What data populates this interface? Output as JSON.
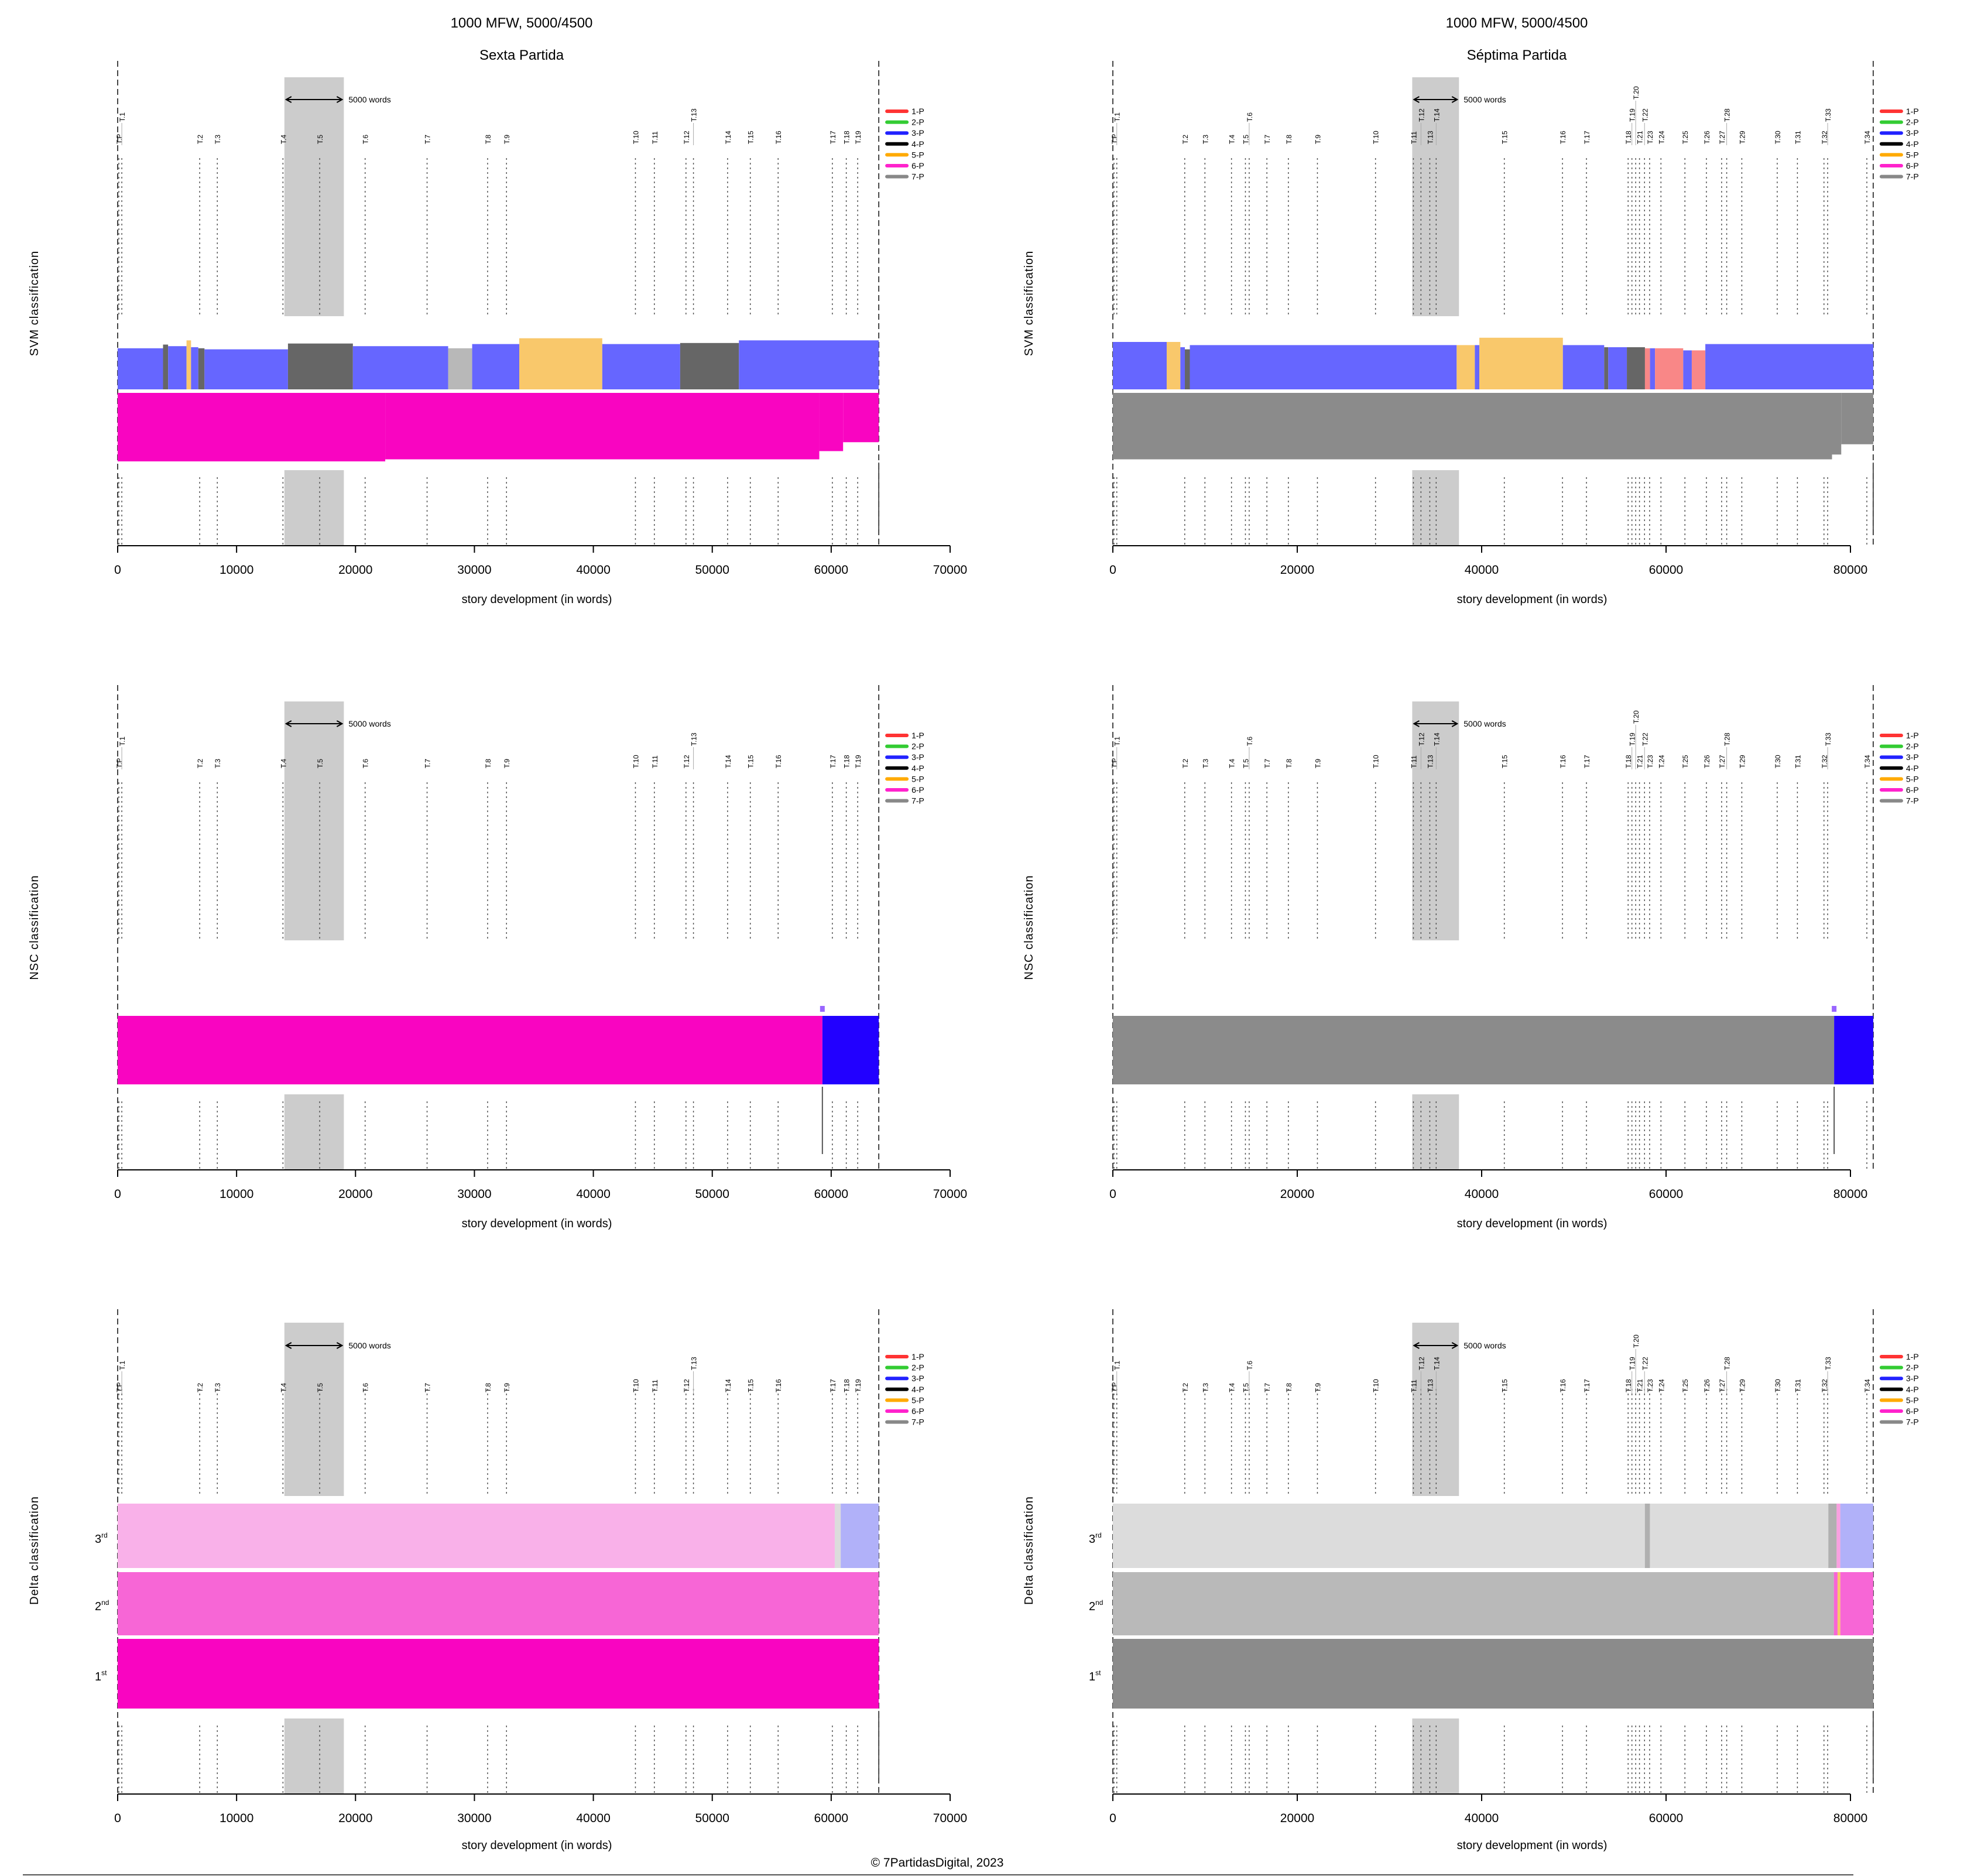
{
  "colors": {
    "blue": "#6666ff",
    "dark": "#666666",
    "orange": "#f9c86b",
    "lightgray": "#b8b8b8",
    "magenta": "#f905c1",
    "gray": "#8b8b8b",
    "salmon": "#f98787",
    "nscblue": "#2200ff",
    "pinklight": "#f9b1e9",
    "pinkmid": "#f766d6",
    "lavender": "#b1b1f9",
    "gray3": "#dcdcdc",
    "gray2": "#b9b9b9",
    "graymark": "#b0b0b0",
    "pinkthin": "#f9a0e0",
    "window": "#cccccc"
  },
  "legend": [
    {
      "label": "1-P",
      "color": "#ff3333"
    },
    {
      "label": "2-P",
      "color": "#33cc33"
    },
    {
      "label": "3-P",
      "color": "#2222ff"
    },
    {
      "label": "4-P",
      "color": "#000000"
    },
    {
      "label": "5-P",
      "color": "#ffaa00"
    },
    {
      "label": "6-P",
      "color": "#ff22cc"
    },
    {
      "label": "7-P",
      "color": "#888888"
    }
  ],
  "window_label": "5000 words",
  "footer": "© 7PartidasDigital, 2023",
  "rank_labels": {
    "r3": "3",
    "r3sup": "rd",
    "r2": "2",
    "r2sup": "nd",
    "r1": "1",
    "r1sup": "st"
  },
  "chart_data": [
    {
      "type": "bar",
      "title": "1000 MFW, 5000/4500",
      "subtitle": "Sexta Partida",
      "ylabel": "SVM classification",
      "xlabel": "story development (in words)",
      "xlim": [
        0,
        70000
      ],
      "xticks": [
        0,
        10000,
        20000,
        30000,
        40000,
        50000,
        60000,
        70000
      ],
      "text_end": 64000,
      "window": [
        14020,
        19020
      ],
      "chapters": [
        [
          "T.P",
          0
        ],
        [
          "T.1",
          250
        ],
        [
          "T.2",
          6800
        ],
        [
          "T.3",
          8280
        ],
        [
          "T.4",
          13800
        ],
        [
          "T.5",
          16890
        ],
        [
          "T.6",
          20710
        ],
        [
          "T.7",
          25920
        ],
        [
          "T.8",
          31010
        ],
        [
          "T.9",
          32600
        ],
        [
          "T.10",
          43440
        ],
        [
          "T.11",
          45030
        ],
        [
          "T.12",
          47690
        ],
        [
          "T.13",
          48320
        ],
        [
          "T.14",
          51190
        ],
        [
          "T.15",
          53100
        ],
        [
          "T.16",
          55440
        ],
        [
          "T.17",
          60000
        ],
        [
          "T.18",
          61170
        ],
        [
          "T.19",
          62130
        ]
      ],
      "bands": [
        [
          [
            0,
            3815,
            "blue",
            0.78
          ],
          [
            3815,
            4240,
            "dark",
            0.85
          ],
          [
            4240,
            5790,
            "blue",
            0.82
          ],
          [
            5790,
            6170,
            "orange",
            0.93
          ],
          [
            6170,
            6780,
            "blue",
            0.8
          ],
          [
            6780,
            7300,
            "dark",
            0.78
          ],
          [
            7300,
            14320,
            "blue",
            0.76
          ],
          [
            14320,
            19780,
            "dark",
            0.87
          ],
          [
            19780,
            27790,
            "blue",
            0.82
          ],
          [
            27790,
            29810,
            "lightgray",
            0.78
          ],
          [
            29810,
            33770,
            "blue",
            0.86
          ],
          [
            33770,
            40750,
            "orange",
            0.97
          ],
          [
            40750,
            47300,
            "blue",
            0.86
          ],
          [
            47300,
            52240,
            "dark",
            0.88
          ],
          [
            52240,
            64000,
            "blue",
            0.93
          ]
        ],
        [
          [
            0,
            22500,
            "magenta",
            1.0
          ],
          [
            22500,
            59000,
            "magenta",
            0.97
          ],
          [
            59000,
            61000,
            "magenta",
            0.85
          ],
          [
            61000,
            64000,
            "magenta",
            0.72
          ]
        ]
      ]
    },
    {
      "type": "bar",
      "title": "1000 MFW, 5000/4500",
      "subtitle": "Séptima Partida",
      "ylabel": "SVM classification",
      "xlabel": "story development (in words)",
      "xlim": [
        0,
        80000
      ],
      "xticks": [
        0,
        20000,
        40000,
        60000,
        80000
      ],
      "text_end": 82470,
      "window": [
        32470,
        37540
      ],
      "chapters": [
        [
          "T.P",
          0
        ],
        [
          "T.1",
          300
        ],
        [
          "T.2",
          7670
        ],
        [
          "T.3",
          9860
        ],
        [
          "T.4",
          12740
        ],
        [
          "T.5",
          14250
        ],
        [
          "T.6",
          14660
        ],
        [
          "T.7",
          16580
        ],
        [
          "T.8",
          18910
        ],
        [
          "T.9",
          22060
        ],
        [
          "T.10",
          28360
        ],
        [
          "T.11",
          32470
        ],
        [
          "T.12",
          33290
        ],
        [
          "T.13",
          34250
        ],
        [
          "T.14",
          34940
        ],
        [
          "T.15",
          42330
        ],
        [
          "T.16",
          48640
        ],
        [
          "T.17",
          51240
        ],
        [
          "T.18",
          55760
        ],
        [
          "T.19",
          56170
        ],
        [
          "T.20",
          56580
        ],
        [
          "T.21",
          56990
        ],
        [
          "T.22",
          57540
        ],
        [
          "T.23",
          58090
        ],
        [
          "T.24",
          59320
        ],
        [
          "T.25",
          61920
        ],
        [
          "T.26",
          64250
        ],
        [
          "T.27",
          65900
        ],
        [
          "T.28",
          66450
        ],
        [
          "T.29",
          68090
        ],
        [
          "T.30",
          71930
        ],
        [
          "T.31",
          74120
        ],
        [
          "T.32",
          77000
        ],
        [
          "T.33",
          77400
        ],
        [
          "T.34",
          81650
        ]
      ],
      "bands": [
        [
          [
            0,
            5840,
            "blue",
            0.9
          ],
          [
            5840,
            7320,
            "orange",
            0.9
          ],
          [
            7320,
            7810,
            "blue",
            0.8
          ],
          [
            7810,
            8350,
            "dark",
            0.76
          ],
          [
            8350,
            37290,
            "blue",
            0.84
          ],
          [
            37290,
            39260,
            "orange",
            0.84
          ],
          [
            39260,
            39750,
            "blue",
            0.84
          ],
          [
            39750,
            48810,
            "orange",
            0.98
          ],
          [
            48810,
            53290,
            "blue",
            0.84
          ],
          [
            53290,
            53730,
            "dark",
            0.8
          ],
          [
            53730,
            55750,
            "blue",
            0.8
          ],
          [
            55750,
            57710,
            "dark",
            0.8
          ],
          [
            57710,
            58260,
            "salmon",
            0.78
          ],
          [
            58260,
            58800,
            "blue",
            0.78
          ],
          [
            58800,
            61860,
            "salmon",
            0.78
          ],
          [
            61860,
            62790,
            "blue",
            0.74
          ],
          [
            62790,
            64260,
            "salmon",
            0.74
          ],
          [
            64260,
            82470,
            "blue",
            0.86
          ]
        ],
        [
          [
            0,
            78000,
            "gray",
            0.97
          ],
          [
            78000,
            79000,
            "gray",
            0.9
          ],
          [
            79000,
            82470,
            "gray",
            0.75
          ]
        ]
      ]
    },
    {
      "type": "bar",
      "title": "",
      "subtitle": "",
      "ylabel": "NSC classification",
      "xlabel": "story development (in words)",
      "xlim": [
        0,
        70000
      ],
      "xticks": [
        0,
        10000,
        20000,
        30000,
        40000,
        50000,
        60000,
        70000
      ],
      "text_end": 64000,
      "window": [
        14020,
        19020
      ],
      "chapters": [
        [
          "T.P",
          0
        ],
        [
          "T.1",
          250
        ],
        [
          "T.2",
          6800
        ],
        [
          "T.3",
          8280
        ],
        [
          "T.4",
          13800
        ],
        [
          "T.5",
          16890
        ],
        [
          "T.6",
          20710
        ],
        [
          "T.7",
          25920
        ],
        [
          "T.8",
          31010
        ],
        [
          "T.9",
          32600
        ],
        [
          "T.10",
          43440
        ],
        [
          "T.11",
          45030
        ],
        [
          "T.12",
          47690
        ],
        [
          "T.13",
          48320
        ],
        [
          "T.14",
          51190
        ],
        [
          "T.15",
          53100
        ],
        [
          "T.16",
          55440
        ],
        [
          "T.17",
          60000
        ],
        [
          "T.18",
          61170
        ],
        [
          "T.19",
          62130
        ]
      ],
      "bands": [
        [
          [
            0,
            59260,
            "magenta",
            1.0
          ],
          [
            59260,
            64000,
            "nscblue",
            1.0
          ]
        ]
      ],
      "transition": 59260
    },
    {
      "type": "bar",
      "title": "",
      "subtitle": "",
      "ylabel": "NSC classification",
      "xlabel": "story development (in words)",
      "xlim": [
        0,
        80000
      ],
      "xticks": [
        0,
        20000,
        40000,
        60000,
        80000
      ],
      "text_end": 82470,
      "window": [
        32470,
        37540
      ],
      "chapters": [
        [
          "T.P",
          0
        ],
        [
          "T.1",
          300
        ],
        [
          "T.2",
          7670
        ],
        [
          "T.3",
          9860
        ],
        [
          "T.4",
          12740
        ],
        [
          "T.5",
          14250
        ],
        [
          "T.6",
          14660
        ],
        [
          "T.7",
          16580
        ],
        [
          "T.8",
          18910
        ],
        [
          "T.9",
          22060
        ],
        [
          "T.10",
          28360
        ],
        [
          "T.11",
          32470
        ],
        [
          "T.12",
          33290
        ],
        [
          "T.13",
          34250
        ],
        [
          "T.14",
          34940
        ],
        [
          "T.15",
          42330
        ],
        [
          "T.16",
          48640
        ],
        [
          "T.17",
          51240
        ],
        [
          "T.18",
          55760
        ],
        [
          "T.19",
          56170
        ],
        [
          "T.20",
          56580
        ],
        [
          "T.21",
          56990
        ],
        [
          "T.22",
          57540
        ],
        [
          "T.23",
          58090
        ],
        [
          "T.24",
          59320
        ],
        [
          "T.25",
          61920
        ],
        [
          "T.26",
          64250
        ],
        [
          "T.27",
          65900
        ],
        [
          "T.28",
          66450
        ],
        [
          "T.29",
          68090
        ],
        [
          "T.30",
          71930
        ],
        [
          "T.31",
          74120
        ],
        [
          "T.32",
          77000
        ],
        [
          "T.33",
          77400
        ],
        [
          "T.34",
          81650
        ]
      ],
      "bands": [
        [
          [
            0,
            78230,
            "gray",
            1.0
          ],
          [
            78230,
            82470,
            "nscblue",
            1.0
          ]
        ]
      ],
      "transition": 78230
    },
    {
      "type": "bar",
      "title": "",
      "subtitle": "",
      "ylabel": "Delta classification",
      "xlabel": "story development (in words)",
      "xlim": [
        0,
        70000
      ],
      "xticks": [
        0,
        10000,
        20000,
        30000,
        40000,
        50000,
        60000,
        70000
      ],
      "text_end": 64000,
      "window": [
        14020,
        19020
      ],
      "chapters": [
        [
          "T.P",
          0
        ],
        [
          "T.1",
          250
        ],
        [
          "T.2",
          6800
        ],
        [
          "T.3",
          8280
        ],
        [
          "T.4",
          13800
        ],
        [
          "T.5",
          16890
        ],
        [
          "T.6",
          20710
        ],
        [
          "T.7",
          25920
        ],
        [
          "T.8",
          31010
        ],
        [
          "T.9",
          32600
        ],
        [
          "T.10",
          43440
        ],
        [
          "T.11",
          45030
        ],
        [
          "T.12",
          47690
        ],
        [
          "T.13",
          48320
        ],
        [
          "T.14",
          51190
        ],
        [
          "T.15",
          53100
        ],
        [
          "T.16",
          55440
        ],
        [
          "T.17",
          60000
        ],
        [
          "T.18",
          61170
        ],
        [
          "T.19",
          62130
        ]
      ],
      "bands": [
        [
          [
            0,
            60300,
            "pinklight",
            1
          ],
          [
            60300,
            60800,
            "gray3",
            1
          ],
          [
            60800,
            64000,
            "lavender",
            1
          ]
        ],
        [
          [
            0,
            64000,
            "pinkmid",
            1
          ]
        ],
        [
          [
            0,
            64000,
            "magenta",
            1
          ]
        ]
      ]
    },
    {
      "type": "bar",
      "title": "",
      "subtitle": "",
      "ylabel": "Delta classification",
      "xlabel": "story development (in words)",
      "xlim": [
        0,
        80000
      ],
      "xticks": [
        0,
        20000,
        40000,
        60000,
        80000
      ],
      "text_end": 82470,
      "window": [
        32470,
        37540
      ],
      "chapters": [
        [
          "T.P",
          0
        ],
        [
          "T.1",
          300
        ],
        [
          "T.2",
          7670
        ],
        [
          "T.3",
          9860
        ],
        [
          "T.4",
          12740
        ],
        [
          "T.5",
          14250
        ],
        [
          "T.6",
          14660
        ],
        [
          "T.7",
          16580
        ],
        [
          "T.8",
          18910
        ],
        [
          "T.9",
          22060
        ],
        [
          "T.10",
          28360
        ],
        [
          "T.11",
          32470
        ],
        [
          "T.12",
          33290
        ],
        [
          "T.13",
          34250
        ],
        [
          "T.14",
          34940
        ],
        [
          "T.15",
          42330
        ],
        [
          "T.16",
          48640
        ],
        [
          "T.17",
          51240
        ],
        [
          "T.18",
          55760
        ],
        [
          "T.19",
          56170
        ],
        [
          "T.20",
          56580
        ],
        [
          "T.21",
          56990
        ],
        [
          "T.22",
          57540
        ],
        [
          "T.23",
          58090
        ],
        [
          "T.24",
          59320
        ],
        [
          "T.25",
          61920
        ],
        [
          "T.26",
          64250
        ],
        [
          "T.27",
          65900
        ],
        [
          "T.28",
          66450
        ],
        [
          "T.29",
          68090
        ],
        [
          "T.30",
          71930
        ],
        [
          "T.31",
          74120
        ],
        [
          "T.32",
          77000
        ],
        [
          "T.33",
          77400
        ],
        [
          "T.34",
          81650
        ]
      ],
      "bands": [
        [
          [
            0,
            57700,
            "gray3",
            1
          ],
          [
            57700,
            58250,
            "graymark",
            1
          ],
          [
            58250,
            77600,
            "gray3",
            1
          ],
          [
            77600,
            78500,
            "graymark",
            1
          ],
          [
            78500,
            78900,
            "pinkthin",
            1
          ],
          [
            78900,
            82470,
            "lavender",
            1
          ]
        ],
        [
          [
            0,
            78200,
            "gray2",
            1
          ],
          [
            78200,
            78600,
            "pinkmid",
            1
          ],
          [
            78600,
            78900,
            "orange",
            1
          ],
          [
            78900,
            82470,
            "pinkmid",
            1
          ]
        ],
        [
          [
            0,
            82470,
            "gray",
            1
          ]
        ]
      ]
    }
  ]
}
